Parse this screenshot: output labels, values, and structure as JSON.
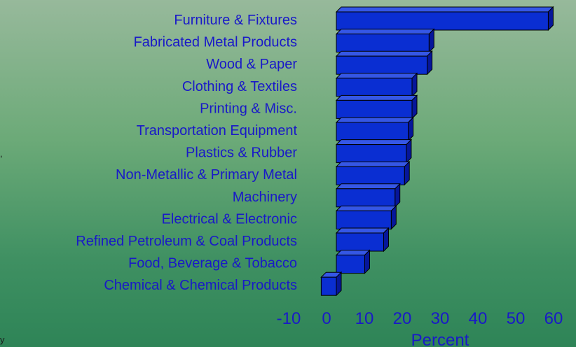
{
  "edge_marks": [
    ",",
    "y"
  ],
  "chart_data": {
    "type": "bar",
    "orientation": "horizontal",
    "style": "3d",
    "title": "",
    "xlabel": "Percent",
    "ylabel": "",
    "xlim": [
      -10,
      60
    ],
    "ticks": [
      "-10",
      "0",
      "10",
      "20",
      "30",
      "40",
      "50",
      "60"
    ],
    "categories": [
      "Furniture & Fixtures",
      "Fabricated Metal Products",
      "Wood & Paper",
      "Clothing & Textiles",
      "Printing & Misc.",
      "Transportation Equipment",
      "Plastics & Rubber ",
      "Non-Metallic & Primary Metal",
      "Machinery ",
      "Electrical & Electronic ",
      "Refined Petroleum & Coal Products",
      "Food, Beverage & Tobacco",
      "Chemical & Chemical Products"
    ],
    "values": [
      56,
      24.5,
      24,
      20,
      20,
      19,
      18.5,
      18,
      15.5,
      14.5,
      12.5,
      7.5,
      -4
    ],
    "colors": {
      "bar_front": "#0a2ed2",
      "bar_top": "#3557e6",
      "bar_side": "#06169a",
      "bar_outline": "#000000",
      "label": "#1919c8"
    },
    "grid": false,
    "legend": "none"
  }
}
